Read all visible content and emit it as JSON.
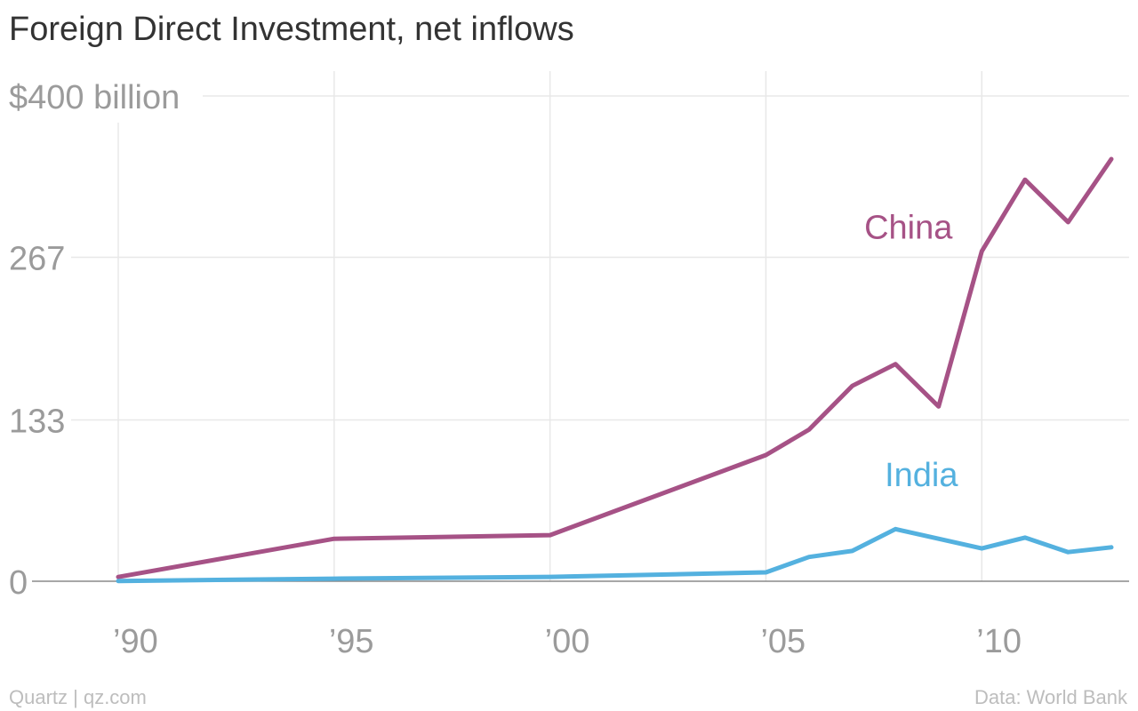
{
  "chart_data": {
    "type": "line",
    "title": "Foreign Direct Investment, net inflows",
    "x": [
      1990,
      1995,
      2000,
      2005,
      2006,
      2007,
      2008,
      2009,
      2010,
      2011,
      2012,
      2013
    ],
    "series": [
      {
        "name": "China",
        "color": "#a65286",
        "values": [
          3.5,
          35,
          38,
          104,
          125,
          161,
          179,
          144,
          272,
          331,
          296,
          348
        ]
      },
      {
        "name": "India",
        "color": "#54b1df",
        "values": [
          0.2,
          2.1,
          3.6,
          7.3,
          20,
          25,
          43,
          35,
          27,
          36,
          24,
          28
        ]
      }
    ],
    "xlim": [
      1990,
      2013
    ],
    "ylim": [
      0,
      400
    ],
    "x_ticks": [
      1990,
      1995,
      2000,
      2005,
      2010
    ],
    "x_tick_labels": [
      "’90",
      "’95",
      "’00",
      "’05",
      "’10"
    ],
    "y_ticks": [
      0,
      133,
      267,
      400
    ],
    "y_tick_labels": [
      "0",
      "133",
      "267",
      "$400 billion"
    ],
    "grid": true,
    "legend": "inline",
    "source": "Data: World Bank",
    "credit": "Quartz | qz.com"
  }
}
